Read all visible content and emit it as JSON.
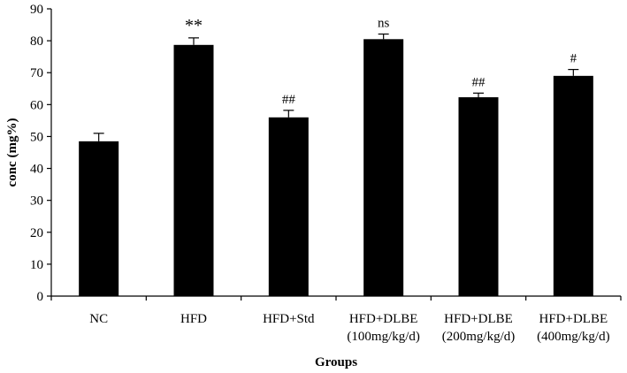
{
  "chart_data": {
    "type": "bar",
    "title": "",
    "xlabel": "Groups",
    "ylabel": "conc (mg%)",
    "ylim": [
      0,
      90
    ],
    "yticks": [
      0,
      10,
      20,
      30,
      40,
      50,
      60,
      70,
      80,
      90
    ],
    "grid": false,
    "legend": "none",
    "bar_color": "#000000",
    "categories": [
      "NC",
      "HFD",
      "HFD+Std",
      "HFD+DLBE (100mg/kg/d)",
      "HFD+DLBE (200mg/kg/d)",
      "HFD+DLBE (400mg/kg/d)"
    ],
    "category_lines": [
      [
        "NC"
      ],
      [
        "HFD"
      ],
      [
        "HFD+Std"
      ],
      [
        "HFD+DLBE",
        "(100mg/kg/d)"
      ],
      [
        "HFD+DLBE",
        "(200mg/kg/d)"
      ],
      [
        "HFD+DLBE",
        "(400mg/kg/d)"
      ]
    ],
    "values": [
      48.5,
      78.7,
      56.0,
      80.5,
      62.3,
      69.0
    ],
    "errors": [
      2.5,
      2.2,
      2.2,
      1.6,
      1.3,
      2.0
    ],
    "annotations": [
      "",
      "**",
      "##",
      "ns",
      "##",
      "#"
    ]
  }
}
